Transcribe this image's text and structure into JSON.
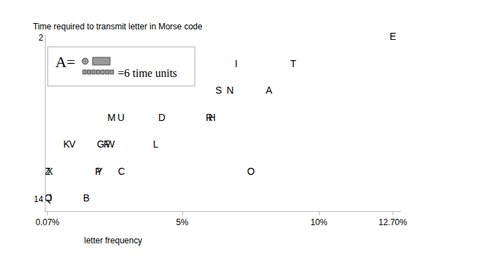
{
  "chart_data": {
    "type": "scatter",
    "marker": "text",
    "color": "#000000",
    "x_label": "letter frequency",
    "y_label": "Time required to transmit letter in Morse code",
    "annotations": [
      "A=",
      "=6 time units"
    ],
    "labels": [
      "E",
      "T",
      "I",
      "S",
      "N",
      "A",
      "M",
      "U",
      "D",
      "R",
      "H",
      "K",
      "V",
      "G",
      "F",
      "W",
      "L",
      "Z",
      "X",
      "P",
      "Y",
      "C",
      "O",
      "Q",
      "J",
      "B"
    ],
    "x": [
      12.7,
      9.06,
      6.97,
      6.33,
      6.75,
      8.17,
      2.41,
      2.76,
      4.25,
      5.99,
      6.09,
      0.77,
      0.98,
      2.02,
      2.23,
      2.36,
      4.03,
      0.07,
      0.15,
      1.93,
      1.97,
      2.78,
      7.51,
      0.1,
      0.15,
      1.49
    ],
    "values": [
      2,
      4,
      4,
      6,
      6,
      6,
      8,
      8,
      8,
      8,
      8,
      10,
      10,
      10,
      10,
      10,
      10,
      12,
      12,
      12,
      12,
      12,
      12,
      14,
      14,
      14
    ],
    "xlim": [
      0,
      13
    ],
    "xticks": [
      {
        "value": 0.07,
        "label": "0.07%"
      },
      {
        "value": 5,
        "label": "5%"
      },
      {
        "value": 10,
        "label": "10%"
      },
      {
        "value": 12.7,
        "label": "12.70%"
      }
    ],
    "ylim": [
      14.9,
      1.8
    ],
    "yticks": [
      2,
      14
    ],
    "grid": false
  }
}
